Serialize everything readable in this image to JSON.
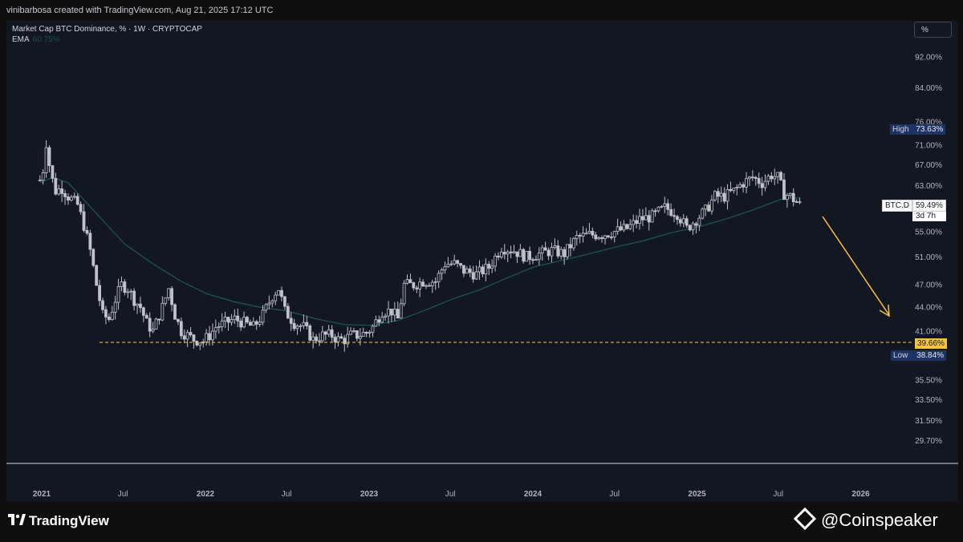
{
  "credit": "vinibarbosa created with TradingView.com, Aug 21, 2025 17:12 UTC",
  "legend": {
    "title": "Market Cap BTC Dominance, % · 1W · CRYPTOCAP",
    "ema_label": "EMA",
    "ema_value": "60.75%"
  },
  "scale_button": "%",
  "brand": {
    "left": "TradingView",
    "right": "@Coinspeaker"
  },
  "colors": {
    "background": "#131722",
    "candles": "#c0c2c8",
    "ema": "#1a5b52",
    "support": "#f5c242",
    "arrow": "#f5c242",
    "tag_bg": "#1e3265"
  },
  "chart_data": {
    "type": "candlestick",
    "symbol": "BTC.D",
    "interval": "1W",
    "y_scale": "log",
    "y_ticks": [
      "92.00%",
      "84.00%",
      "76.00%",
      "71.00%",
      "67.00%",
      "63.00%",
      "55.00%",
      "51.00%",
      "47.00%",
      "44.00%",
      "41.00%",
      "35.50%",
      "33.50%",
      "31.50%",
      "29.70%"
    ],
    "x_ticks": [
      "2021",
      "Jul",
      "2022",
      "Jul",
      "2023",
      "Jul",
      "2024",
      "Jul",
      "2025",
      "Jul",
      "2026"
    ],
    "high_label": "High",
    "high_value": "73.63%",
    "low_label": "Low",
    "low_value": "38.84%",
    "current_label": "BTC.D",
    "current_value": "59.49%",
    "countdown": "3d 7h",
    "support_value": "39.66%",
    "support_level": 39.66,
    "anchors": [
      [
        "2020-12-28",
        64
      ],
      [
        "2021-01-04",
        66
      ],
      [
        "2021-01-11",
        71.5
      ],
      [
        "2021-01-18",
        67
      ],
      [
        "2021-01-25",
        64
      ],
      [
        "2021-02-01",
        62
      ],
      [
        "2021-02-15",
        62.5
      ],
      [
        "2021-03-01",
        61
      ],
      [
        "2021-03-22",
        59.5
      ],
      [
        "2021-04-05",
        56
      ],
      [
        "2021-04-19",
        52
      ],
      [
        "2021-05-03",
        47
      ],
      [
        "2021-05-17",
        43
      ],
      [
        "2021-05-31",
        42.5
      ],
      [
        "2021-06-14",
        45
      ],
      [
        "2021-06-28",
        47
      ],
      [
        "2021-07-12",
        46.5
      ],
      [
        "2021-07-26",
        45
      ],
      [
        "2021-08-09",
        44
      ],
      [
        "2021-08-23",
        42
      ],
      [
        "2021-09-06",
        41
      ],
      [
        "2021-09-27",
        44
      ],
      [
        "2021-10-11",
        46.5
      ],
      [
        "2021-10-25",
        43
      ],
      [
        "2021-11-08",
        41
      ],
      [
        "2021-11-22",
        40.5
      ],
      [
        "2021-12-06",
        40
      ],
      [
        "2021-12-27",
        39.8
      ],
      [
        "2022-01-10",
        40.5
      ],
      [
        "2022-01-24",
        41.5
      ],
      [
        "2022-02-14",
        42
      ],
      [
        "2022-03-07",
        42.5
      ],
      [
        "2022-03-28",
        42
      ],
      [
        "2022-04-18",
        41.5
      ],
      [
        "2022-05-09",
        43
      ],
      [
        "2022-05-30",
        45.5
      ],
      [
        "2022-06-13",
        46.5
      ],
      [
        "2022-06-27",
        43.5
      ],
      [
        "2022-07-18",
        42
      ],
      [
        "2022-08-08",
        41.5
      ],
      [
        "2022-08-29",
        40
      ],
      [
        "2022-09-19",
        40.5
      ],
      [
        "2022-10-10",
        40.5
      ],
      [
        "2022-10-24",
        40
      ],
      [
        "2022-11-07",
        40
      ],
      [
        "2022-11-21",
        40.5
      ],
      [
        "2022-12-05",
        40.5
      ],
      [
        "2022-12-26",
        40.8
      ],
      [
        "2023-01-09",
        41.5
      ],
      [
        "2023-01-30",
        43.5
      ],
      [
        "2023-02-20",
        43.5
      ],
      [
        "2023-03-06",
        42.5
      ],
      [
        "2023-03-20",
        47
      ],
      [
        "2023-04-10",
        47
      ],
      [
        "2023-05-01",
        47.5
      ],
      [
        "2023-05-29",
        47.5
      ],
      [
        "2023-06-19",
        50
      ],
      [
        "2023-07-10",
        50
      ],
      [
        "2023-07-31",
        49
      ],
      [
        "2023-08-28",
        48.5
      ],
      [
        "2023-09-25",
        49.5
      ],
      [
        "2023-10-23",
        52.5
      ],
      [
        "2023-11-20",
        52
      ],
      [
        "2023-12-18",
        51
      ],
      [
        "2024-01-15",
        51.5
      ],
      [
        "2024-02-12",
        52
      ],
      [
        "2024-03-11",
        51.5
      ],
      [
        "2024-04-08",
        54
      ],
      [
        "2024-05-06",
        54.5
      ],
      [
        "2024-06-03",
        54.5
      ],
      [
        "2024-07-01",
        55
      ],
      [
        "2024-07-29",
        55.5
      ],
      [
        "2024-08-26",
        57
      ],
      [
        "2024-09-23",
        57.5
      ],
      [
        "2024-10-21",
        59
      ],
      [
        "2024-11-18",
        58
      ],
      [
        "2024-12-09",
        55.5
      ],
      [
        "2024-12-30",
        57
      ],
      [
        "2025-01-20",
        58.5
      ],
      [
        "2025-02-10",
        61
      ],
      [
        "2025-03-03",
        61
      ],
      [
        "2025-03-24",
        62
      ],
      [
        "2025-04-14",
        63.5
      ],
      [
        "2025-05-05",
        64.5
      ],
      [
        "2025-05-26",
        63.5
      ],
      [
        "2025-06-16",
        65
      ],
      [
        "2025-06-30",
        64.5
      ],
      [
        "2025-07-14",
        61.5
      ],
      [
        "2025-07-28",
        61
      ],
      [
        "2025-08-18",
        59.49
      ]
    ],
    "ema_anchors": [
      [
        "2020-12-28",
        63.5
      ],
      [
        "2021-01-25",
        64.5
      ],
      [
        "2021-03-01",
        63.5
      ],
      [
        "2021-05-03",
        58
      ],
      [
        "2021-07-05",
        53
      ],
      [
        "2021-09-06",
        50
      ],
      [
        "2021-11-08",
        47.5
      ],
      [
        "2022-01-03",
        45.8
      ],
      [
        "2022-03-07",
        44.7
      ],
      [
        "2022-05-02",
        44
      ],
      [
        "2022-07-04",
        43.5
      ],
      [
        "2022-09-05",
        42.5
      ],
      [
        "2022-11-07",
        41.8
      ],
      [
        "2023-01-02",
        41.7
      ],
      [
        "2023-03-06",
        42.3
      ],
      [
        "2023-05-01",
        43.5
      ],
      [
        "2023-07-03",
        45
      ],
      [
        "2023-09-04",
        46.3
      ],
      [
        "2023-11-06",
        48
      ],
      [
        "2024-01-01",
        49.5
      ],
      [
        "2024-03-04",
        50.5
      ],
      [
        "2024-05-06",
        51.5
      ],
      [
        "2024-07-01",
        52.5
      ],
      [
        "2024-09-02",
        53.5
      ],
      [
        "2024-11-04",
        54.8
      ],
      [
        "2025-01-06",
        55.8
      ],
      [
        "2025-03-03",
        57
      ],
      [
        "2025-05-05",
        58.6
      ],
      [
        "2025-07-07",
        60.5
      ],
      [
        "2025-08-18",
        60.75
      ]
    ]
  }
}
